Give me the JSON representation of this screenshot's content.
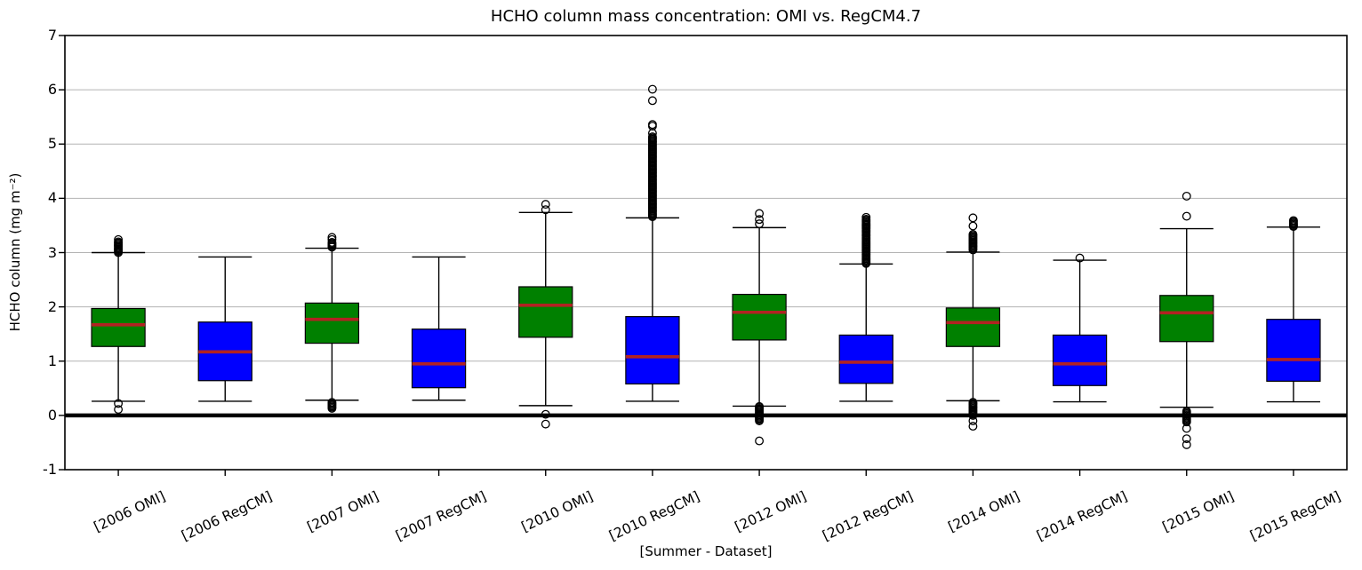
{
  "chart_data": {
    "type": "boxplot",
    "title": "HCHO column mass concentration: OMI vs. RegCM4.7",
    "xlabel": "[Summer - Dataset]",
    "ylabel": "HCHO column (mg m⁻²)",
    "ylim": [
      -1,
      7
    ],
    "yticks": [
      7,
      6,
      5,
      4,
      3,
      2,
      1,
      0,
      -1
    ],
    "grid": "horizontal-light",
    "zero_line_at": 0,
    "legend": "none",
    "colors": {
      "omi_box": "#008000",
      "regcm_box": "#0000ff",
      "median": "#b22222",
      "whisker": "#000000",
      "grid": "#b3b3b3",
      "zero_line": "#000000",
      "spine": "#000000",
      "background": "#ffffff"
    },
    "boxes": [
      {
        "label": "[2006 OMI]",
        "series": "OMI",
        "whisker_low": 0.26,
        "q1": 1.27,
        "median": 1.67,
        "q3": 1.97,
        "whisker_high": 3.0,
        "fliers_high_range": [
          3.0,
          3.2
        ],
        "fliers_high": [
          3.24
        ],
        "fliers_low_range": null,
        "fliers_low": [
          0.22,
          0.11
        ]
      },
      {
        "label": "[2006 RegCM]",
        "series": "RegCM",
        "whisker_low": 0.26,
        "q1": 0.64,
        "median": 1.17,
        "q3": 1.72,
        "whisker_high": 2.92,
        "fliers_high_range": null,
        "fliers_high": [],
        "fliers_low_range": null,
        "fliers_low": []
      },
      {
        "label": "[2007 OMI]",
        "series": "OMI",
        "whisker_low": 0.28,
        "q1": 1.33,
        "median": 1.77,
        "q3": 2.07,
        "whisker_high": 3.08,
        "fliers_high_range": [
          3.1,
          3.2
        ],
        "fliers_high": [
          3.24,
          3.28
        ],
        "fliers_low_range": [
          0.13,
          0.25
        ],
        "fliers_low": []
      },
      {
        "label": "[2007 RegCM]",
        "series": "RegCM",
        "whisker_low": 0.28,
        "q1": 0.51,
        "median": 0.95,
        "q3": 1.59,
        "whisker_high": 2.92,
        "fliers_high_range": null,
        "fliers_high": [],
        "fliers_low_range": null,
        "fliers_low": []
      },
      {
        "label": "[2010 OMI]",
        "series": "OMI",
        "whisker_low": 0.18,
        "q1": 1.44,
        "median": 2.03,
        "q3": 2.37,
        "whisker_high": 3.74,
        "fliers_high_range": null,
        "fliers_high": [
          3.79,
          3.89
        ],
        "fliers_low_range": null,
        "fliers_low": [
          0.02,
          -0.16
        ]
      },
      {
        "label": "[2010 RegCM]",
        "series": "RegCM",
        "whisker_low": 0.26,
        "q1": 0.58,
        "median": 1.08,
        "q3": 1.82,
        "whisker_high": 3.64,
        "fliers_high_range": [
          3.66,
          5.15
        ],
        "fliers_high": [
          5.2,
          5.33,
          5.36,
          5.8,
          6.01
        ],
        "fliers_low_range": null,
        "fliers_low": []
      },
      {
        "label": "[2012 OMI]",
        "series": "OMI",
        "whisker_low": 0.17,
        "q1": 1.39,
        "median": 1.9,
        "q3": 2.23,
        "whisker_high": 3.46,
        "fliers_high_range": null,
        "fliers_high": [
          3.53,
          3.61,
          3.72
        ],
        "fliers_low_range": [
          -0.1,
          0.18
        ],
        "fliers_low": [
          -0.47
        ]
      },
      {
        "label": "[2012 RegCM]",
        "series": "RegCM",
        "whisker_low": 0.26,
        "q1": 0.59,
        "median": 0.98,
        "q3": 1.48,
        "whisker_high": 2.79,
        "fliers_high_range": [
          2.8,
          3.62
        ],
        "fliers_high": [
          3.65
        ],
        "fliers_low_range": null,
        "fliers_low": []
      },
      {
        "label": "[2014 OMI]",
        "series": "OMI",
        "whisker_low": 0.27,
        "q1": 1.27,
        "median": 1.71,
        "q3": 1.98,
        "whisker_high": 3.01,
        "fliers_high_range": [
          3.05,
          3.35
        ],
        "fliers_high": [
          3.49,
          3.64
        ],
        "fliers_low_range": [
          0.0,
          0.25
        ],
        "fliers_low": [
          -0.1,
          -0.2
        ]
      },
      {
        "label": "[2014 RegCM]",
        "series": "RegCM",
        "whisker_low": 0.25,
        "q1": 0.55,
        "median": 0.95,
        "q3": 1.48,
        "whisker_high": 2.86,
        "fliers_high_range": null,
        "fliers_high": [
          2.9
        ],
        "fliers_low_range": null,
        "fliers_low": []
      },
      {
        "label": "[2015 OMI]",
        "series": "OMI",
        "whisker_low": 0.15,
        "q1": 1.36,
        "median": 1.89,
        "q3": 2.21,
        "whisker_high": 3.44,
        "fliers_high_range": null,
        "fliers_high": [
          3.67,
          4.04
        ],
        "fliers_low_range": [
          -0.12,
          0.08
        ],
        "fliers_low": [
          -0.24,
          -0.43,
          -0.54
        ]
      },
      {
        "label": "[2015 RegCM]",
        "series": "RegCM",
        "whisker_low": 0.25,
        "q1": 0.63,
        "median": 1.03,
        "q3": 1.77,
        "whisker_high": 3.47,
        "fliers_high_range": [
          3.48,
          3.6
        ],
        "fliers_high": [],
        "fliers_low_range": null,
        "fliers_low": []
      }
    ]
  }
}
